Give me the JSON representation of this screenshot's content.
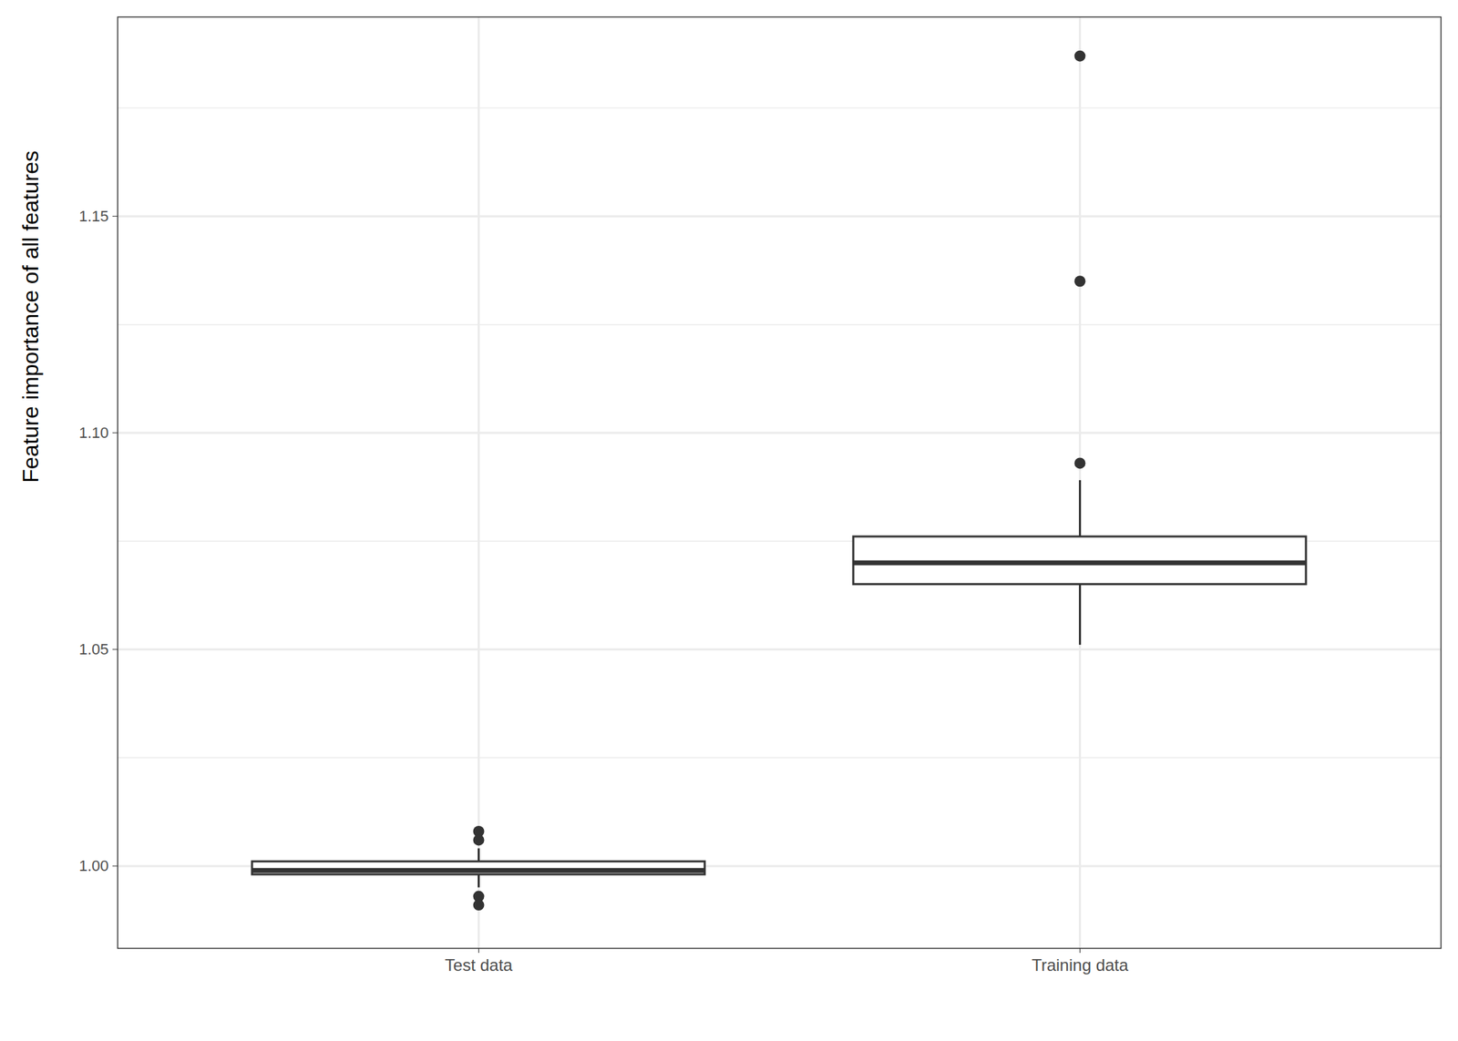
{
  "chart_data": {
    "type": "box",
    "ylabel": "Feature importance of all features",
    "categories": [
      "Test data",
      "Training data"
    ],
    "whisker_low": [
      0.995,
      1.051
    ],
    "q1": [
      0.998,
      1.065
    ],
    "median": [
      0.999,
      1.07
    ],
    "q3": [
      1.001,
      1.076
    ],
    "whisker_high": [
      1.004,
      1.089
    ],
    "outliers": [
      [
        1.008,
        1.006,
        0.993,
        0.991
      ],
      [
        1.187,
        1.135,
        1.093
      ]
    ],
    "color": "#333333",
    "ylim": [
      0.981,
      1.196
    ],
    "yticks": [
      {
        "value": 1,
        "label": "1.00"
      },
      {
        "value": 1.05,
        "label": "1.05"
      },
      {
        "value": 1.1,
        "label": "1.10"
      },
      {
        "value": 1.15,
        "label": "1.15"
      }
    ],
    "grid": true
  }
}
